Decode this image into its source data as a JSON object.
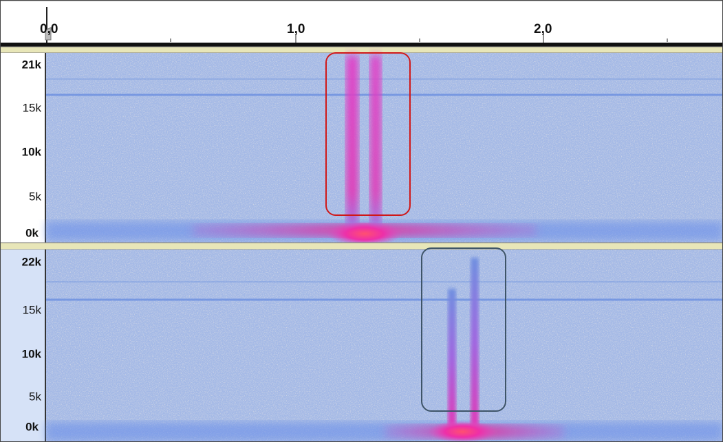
{
  "ruler": {
    "labels": [
      "0,0",
      "1,0",
      "2,0"
    ]
  },
  "tracks": [
    {
      "freq_labels": [
        "21k",
        "15k",
        "10k",
        "5k",
        "0k"
      ]
    },
    {
      "freq_labels": [
        "22k",
        "15k",
        "10k",
        "5k",
        "0k"
      ]
    }
  ]
}
